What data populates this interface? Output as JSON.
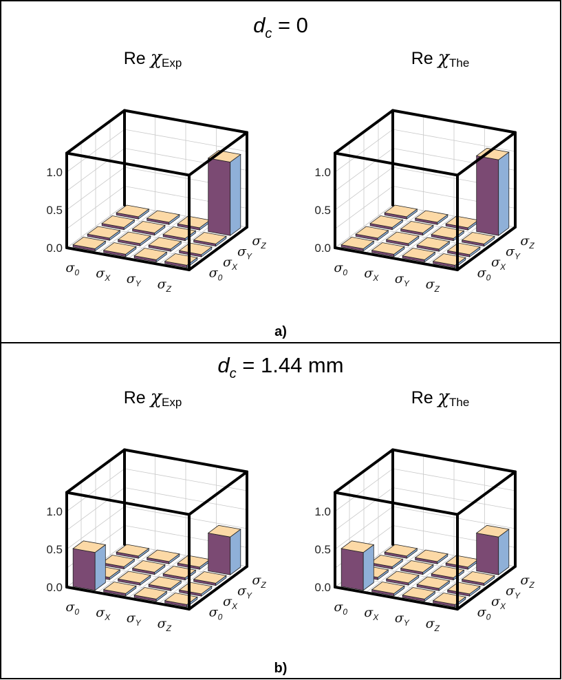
{
  "figure": {
    "rows": [
      {
        "label": "a)",
        "title": {
          "var": "d",
          "sub": "c",
          "eq": " = 0"
        },
        "panels": [
          {
            "title_prefix": "Re ",
            "chi": "χ",
            "chi_sub": "Exp"
          },
          {
            "title_prefix": "Re ",
            "chi": "χ",
            "chi_sub": "The"
          }
        ]
      },
      {
        "label": "b)",
        "title": {
          "var": "d",
          "sub": "c",
          "eq": " = 1.44 mm"
        },
        "panels": [
          {
            "title_prefix": "Re ",
            "chi": "χ",
            "chi_sub": "Exp"
          },
          {
            "title_prefix": "Re ",
            "chi": "χ",
            "chi_sub": "The"
          }
        ]
      }
    ]
  },
  "chart_data": [
    {
      "type": "bar3d",
      "title": "Re χExp",
      "row": "a)",
      "x_categories": [
        "σ0",
        "σX",
        "σY",
        "σZ"
      ],
      "y_categories": [
        "σ0",
        "σX",
        "σY",
        "σZ"
      ],
      "zticks": [
        "0.0",
        "0.5",
        "1.0"
      ],
      "zlim": [
        0,
        1.25
      ],
      "values": [
        [
          0,
          0,
          0,
          0
        ],
        [
          0,
          0,
          0,
          0
        ],
        [
          0,
          0,
          0,
          0
        ],
        [
          0,
          0,
          0,
          0.97
        ]
      ]
    },
    {
      "type": "bar3d",
      "title": "Re χThe",
      "row": "a)",
      "x_categories": [
        "σ0",
        "σX",
        "σY",
        "σZ"
      ],
      "y_categories": [
        "σ0",
        "σX",
        "σY",
        "σZ"
      ],
      "zticks": [
        "0.0",
        "0.5",
        "1.0"
      ],
      "zlim": [
        0,
        1.25
      ],
      "values": [
        [
          0,
          0,
          0,
          0
        ],
        [
          0,
          0,
          0,
          0
        ],
        [
          0,
          0,
          0,
          0
        ],
        [
          0,
          0,
          0,
          1.0
        ]
      ]
    },
    {
      "type": "bar3d",
      "title": "Re χExp",
      "row": "b)",
      "x_categories": [
        "σ0",
        "σX",
        "σY",
        "σZ"
      ],
      "y_categories": [
        "σ0",
        "σX",
        "σY",
        "σZ"
      ],
      "zticks": [
        "0.0",
        "0.5",
        "1.0"
      ],
      "zlim": [
        0,
        1.25
      ],
      "values": [
        [
          0.5,
          0,
          0,
          0
        ],
        [
          0,
          0,
          0,
          0
        ],
        [
          0,
          0,
          0,
          0
        ],
        [
          0,
          0,
          0,
          0.5
        ]
      ]
    },
    {
      "type": "bar3d",
      "title": "Re χThe",
      "row": "b)",
      "x_categories": [
        "σ0",
        "σX",
        "σY",
        "σZ"
      ],
      "y_categories": [
        "σ0",
        "σX",
        "σY",
        "σZ"
      ],
      "zticks": [
        "0.0",
        "0.5",
        "1.0"
      ],
      "zlim": [
        0,
        1.25
      ],
      "values": [
        [
          0.5,
          0,
          0,
          0
        ],
        [
          0,
          0,
          0,
          0
        ],
        [
          0,
          0,
          0,
          0
        ],
        [
          0,
          0,
          0,
          0.5
        ]
      ]
    }
  ],
  "colors": {
    "bar_top": "#fcd9a6",
    "bar_front": "#7b4a73",
    "bar_side": "#8fb0d8",
    "bar_outline": "#222222",
    "grid": "#c8c8c8",
    "box": "#000000"
  }
}
